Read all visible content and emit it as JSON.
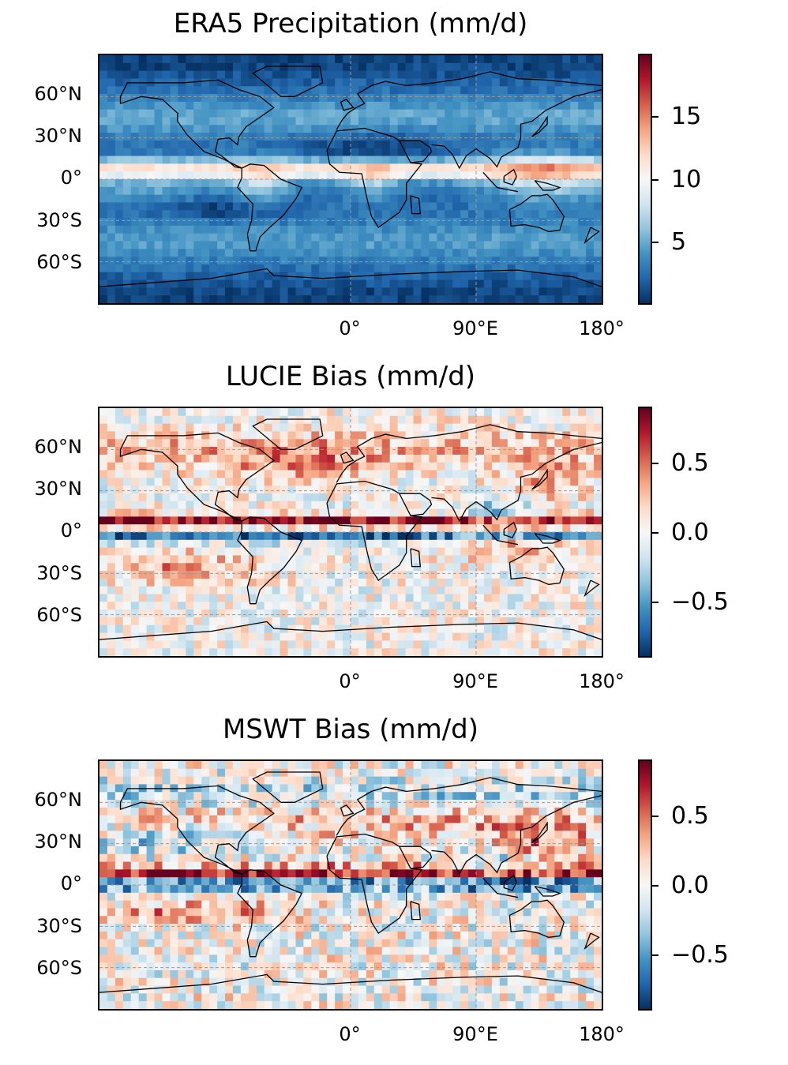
{
  "chart_data": [
    {
      "type": "heatmap",
      "title": "ERA5 Precipitation (mm/d)",
      "projection": "PlateCarree",
      "ytick_labels": [
        "60°N",
        "30°N",
        "0°",
        "30°S",
        "60°S"
      ],
      "ytick_values": [
        60,
        30,
        0,
        -30,
        -60
      ],
      "xtick_labels": [
        "0°",
        "90°E",
        "180°"
      ],
      "xtick_values": [
        0,
        90,
        180
      ],
      "colorbar": {
        "cmap": "RdBu_r",
        "vmin": 0.2,
        "vmax": 19.5,
        "tick_labels": [
          "5",
          "10",
          "15"
        ],
        "tick_values": [
          5,
          10,
          15
        ]
      }
    },
    {
      "type": "heatmap",
      "title": "LUCIE Bias (mm/d)",
      "projection": "PlateCarree",
      "ytick_labels": [
        "60°N",
        "30°N",
        "0°",
        "30°S",
        "60°S"
      ],
      "ytick_values": [
        60,
        30,
        0,
        -30,
        -60
      ],
      "xtick_labels": [
        "0°",
        "90°E",
        "180°"
      ],
      "xtick_values": [
        0,
        90,
        180
      ],
      "colorbar": {
        "cmap": "RdBu_r",
        "vmin": -0.9,
        "vmax": 0.9,
        "tick_labels": [
          "0.5",
          "0.0",
          "−0.5"
        ],
        "tick_values": [
          0.5,
          0.0,
          -0.5
        ]
      }
    },
    {
      "type": "heatmap",
      "title": "MSWT Bias (mm/d)",
      "projection": "PlateCarree",
      "ytick_labels": [
        "60°N",
        "30°N",
        "0°",
        "30°S",
        "60°S"
      ],
      "ytick_values": [
        60,
        30,
        0,
        -30,
        -60
      ],
      "xtick_labels": [
        "0°",
        "90°E",
        "180°"
      ],
      "xtick_values": [
        0,
        90,
        180
      ],
      "colorbar": {
        "cmap": "RdBu_r",
        "vmin": -0.9,
        "vmax": 0.9,
        "tick_labels": [
          "0.5",
          "0.0",
          "−0.5"
        ],
        "tick_values": [
          0.5,
          0.0,
          -0.5
        ]
      }
    }
  ]
}
